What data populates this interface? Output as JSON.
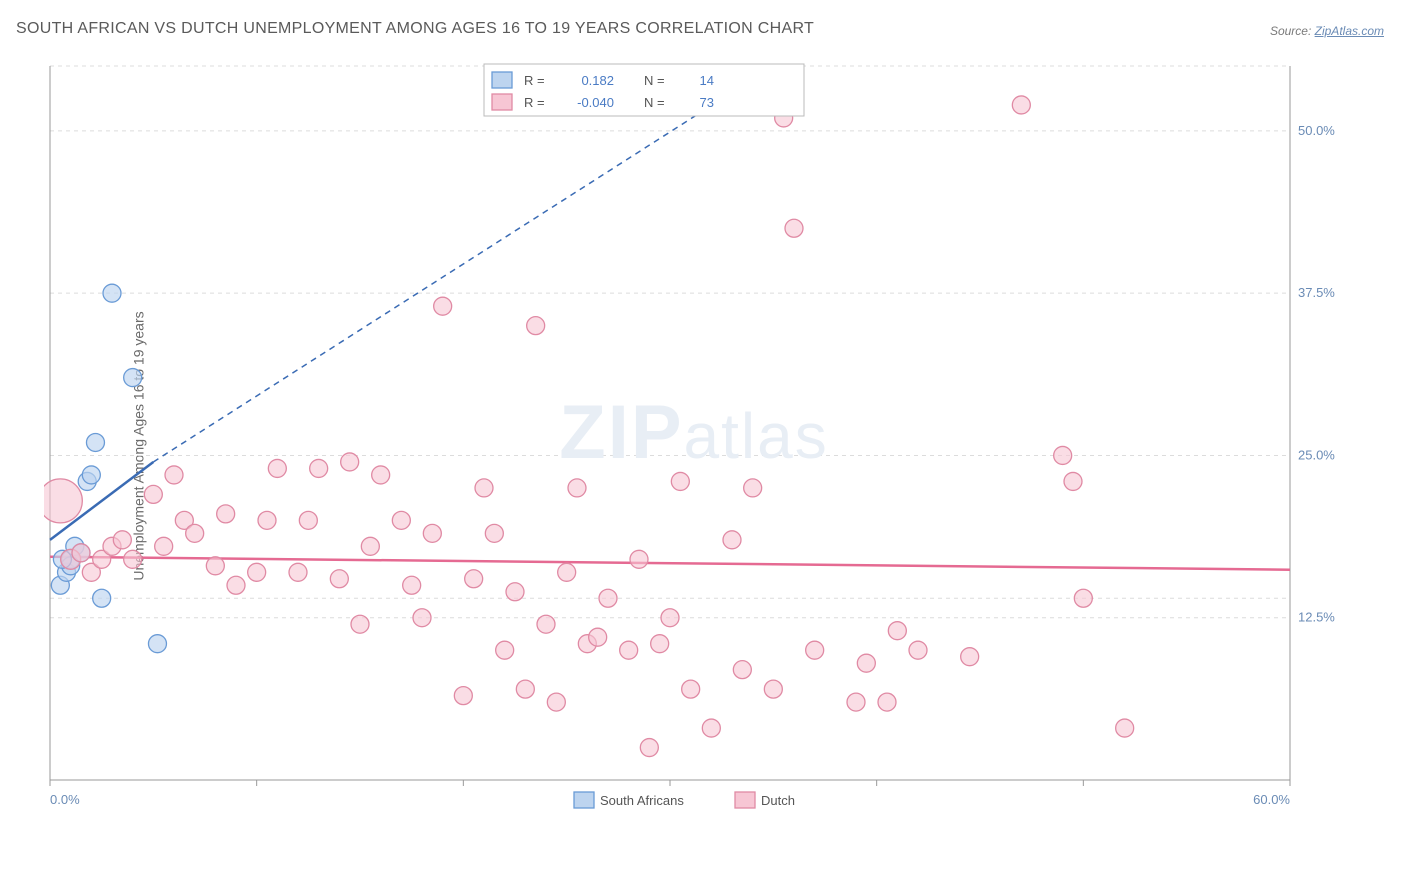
{
  "title": "SOUTH AFRICAN VS DUTCH UNEMPLOYMENT AMONG AGES 16 TO 19 YEARS CORRELATION CHART",
  "source_label": "Source:",
  "source_name": "ZipAtlas.com",
  "ylabel": "Unemployment Among Ages 16 to 19 years",
  "watermark_a": "ZIP",
  "watermark_b": "atlas",
  "chart": {
    "type": "scatter",
    "background_color": "#ffffff",
    "grid_color": "#dcdcdc",
    "grid_dash": "4,4",
    "axis_color": "#999999",
    "xlim": [
      0,
      60
    ],
    "ylim": [
      0,
      55
    ],
    "x_ticks": [
      0,
      10,
      20,
      30,
      40,
      50,
      60
    ],
    "y_ticks": [
      12.5,
      25.0,
      37.5,
      50.0
    ],
    "x_label_min": "0.0%",
    "x_label_max": "60.0%",
    "y_tick_labels": [
      "12.5%",
      "25.0%",
      "37.5%",
      "50.0%"
    ],
    "legend_top": {
      "r_label": "R =",
      "n_label": "N =",
      "value_color": "#4a7bc4",
      "rows": [
        {
          "swatch_fill": "#bdd4ef",
          "swatch_stroke": "#6a9bd6",
          "r": "0.182",
          "n": "14"
        },
        {
          "swatch_fill": "#f7c6d4",
          "swatch_stroke": "#e08aa4",
          "r": "-0.040",
          "n": "73"
        }
      ]
    },
    "legend_bottom": [
      {
        "swatch_fill": "#bdd4ef",
        "swatch_stroke": "#6a9bd6",
        "label": "South Africans"
      },
      {
        "swatch_fill": "#f7c6d4",
        "swatch_stroke": "#e08aa4",
        "label": "Dutch"
      }
    ],
    "series": [
      {
        "name": "South Africans",
        "marker_fill": "#bdd4ef",
        "marker_stroke": "#6a9bd6",
        "marker_opacity": 0.65,
        "line_color": "#3a6bb4",
        "line_width": 2.5,
        "line_solid": {
          "x1": 0,
          "y1": 18.5,
          "x2": 5,
          "y2": 24.5
        },
        "line_dash": {
          "x1": 5,
          "y1": 24.5,
          "x2": 35,
          "y2": 55
        },
        "points": [
          {
            "x": 0.5,
            "y": 15,
            "r": 9
          },
          {
            "x": 0.8,
            "y": 16,
            "r": 9
          },
          {
            "x": 1.0,
            "y": 17,
            "r": 9
          },
          {
            "x": 1.2,
            "y": 18,
            "r": 9
          },
          {
            "x": 1.5,
            "y": 17.5,
            "r": 9
          },
          {
            "x": 1.8,
            "y": 23,
            "r": 9
          },
          {
            "x": 2.0,
            "y": 23.5,
            "r": 9
          },
          {
            "x": 2.2,
            "y": 26,
            "r": 9
          },
          {
            "x": 2.5,
            "y": 14,
            "r": 9
          },
          {
            "x": 3.0,
            "y": 37.5,
            "r": 9
          },
          {
            "x": 4.0,
            "y": 31,
            "r": 9
          },
          {
            "x": 5.2,
            "y": 10.5,
            "r": 9
          },
          {
            "x": 1.0,
            "y": 16.5,
            "r": 9
          },
          {
            "x": 0.6,
            "y": 17,
            "r": 9
          }
        ]
      },
      {
        "name": "Dutch",
        "marker_fill": "#f7c6d4",
        "marker_stroke": "#e08aa4",
        "marker_opacity": 0.6,
        "line_color": "#e56a92",
        "line_width": 2.5,
        "line_solid": {
          "x1": 0,
          "y1": 17.2,
          "x2": 60,
          "y2": 16.2
        },
        "points": [
          {
            "x": 0.5,
            "y": 21.5,
            "r": 22
          },
          {
            "x": 1,
            "y": 17,
            "r": 10
          },
          {
            "x": 1.5,
            "y": 17.5,
            "r": 9
          },
          {
            "x": 2,
            "y": 16,
            "r": 9
          },
          {
            "x": 2.5,
            "y": 17,
            "r": 9
          },
          {
            "x": 3,
            "y": 18,
            "r": 9
          },
          {
            "x": 3.5,
            "y": 18.5,
            "r": 9
          },
          {
            "x": 4,
            "y": 17,
            "r": 9
          },
          {
            "x": 5,
            "y": 22,
            "r": 9
          },
          {
            "x": 5.5,
            "y": 18,
            "r": 9
          },
          {
            "x": 6,
            "y": 23.5,
            "r": 9
          },
          {
            "x": 6.5,
            "y": 20,
            "r": 9
          },
          {
            "x": 7,
            "y": 19,
            "r": 9
          },
          {
            "x": 8,
            "y": 16.5,
            "r": 9
          },
          {
            "x": 8.5,
            "y": 20.5,
            "r": 9
          },
          {
            "x": 9,
            "y": 15,
            "r": 9
          },
          {
            "x": 10,
            "y": 16,
            "r": 9
          },
          {
            "x": 10.5,
            "y": 20,
            "r": 9
          },
          {
            "x": 11,
            "y": 24,
            "r": 9
          },
          {
            "x": 12,
            "y": 16,
            "r": 9
          },
          {
            "x": 12.5,
            "y": 20,
            "r": 9
          },
          {
            "x": 13,
            "y": 24,
            "r": 9
          },
          {
            "x": 14,
            "y": 15.5,
            "r": 9
          },
          {
            "x": 14.5,
            "y": 24.5,
            "r": 9
          },
          {
            "x": 15,
            "y": 12,
            "r": 9
          },
          {
            "x": 15.5,
            "y": 18,
            "r": 9
          },
          {
            "x": 16,
            "y": 23.5,
            "r": 9
          },
          {
            "x": 17,
            "y": 20,
            "r": 9
          },
          {
            "x": 17.5,
            "y": 15,
            "r": 9
          },
          {
            "x": 18,
            "y": 12.5,
            "r": 9
          },
          {
            "x": 18.5,
            "y": 19,
            "r": 9
          },
          {
            "x": 19,
            "y": 36.5,
            "r": 9
          },
          {
            "x": 20,
            "y": 6.5,
            "r": 9
          },
          {
            "x": 20.5,
            "y": 15.5,
            "r": 9
          },
          {
            "x": 21,
            "y": 22.5,
            "r": 9
          },
          {
            "x": 21.5,
            "y": 19,
            "r": 9
          },
          {
            "x": 22,
            "y": 10,
            "r": 9
          },
          {
            "x": 22.5,
            "y": 14.5,
            "r": 9
          },
          {
            "x": 23,
            "y": 7,
            "r": 9
          },
          {
            "x": 23.5,
            "y": 35,
            "r": 9
          },
          {
            "x": 24,
            "y": 12,
            "r": 9
          },
          {
            "x": 24.5,
            "y": 6,
            "r": 9
          },
          {
            "x": 25,
            "y": 16,
            "r": 9
          },
          {
            "x": 25.5,
            "y": 22.5,
            "r": 9
          },
          {
            "x": 26,
            "y": 10.5,
            "r": 9
          },
          {
            "x": 26.5,
            "y": 11,
            "r": 9
          },
          {
            "x": 27,
            "y": 14,
            "r": 9
          },
          {
            "x": 28,
            "y": 10,
            "r": 9
          },
          {
            "x": 28.5,
            "y": 17,
            "r": 9
          },
          {
            "x": 29,
            "y": 2.5,
            "r": 9
          },
          {
            "x": 29.5,
            "y": 10.5,
            "r": 9
          },
          {
            "x": 30,
            "y": 12.5,
            "r": 9
          },
          {
            "x": 30.5,
            "y": 23,
            "r": 9
          },
          {
            "x": 31,
            "y": 7,
            "r": 9
          },
          {
            "x": 32,
            "y": 4,
            "r": 9
          },
          {
            "x": 33,
            "y": 18.5,
            "r": 9
          },
          {
            "x": 33.5,
            "y": 8.5,
            "r": 9
          },
          {
            "x": 34,
            "y": 22.5,
            "r": 9
          },
          {
            "x": 35,
            "y": 7,
            "r": 9
          },
          {
            "x": 35.5,
            "y": 51,
            "r": 9
          },
          {
            "x": 36,
            "y": 42.5,
            "r": 9
          },
          {
            "x": 37,
            "y": 10,
            "r": 9
          },
          {
            "x": 39,
            "y": 6,
            "r": 9
          },
          {
            "x": 39.5,
            "y": 9,
            "r": 9
          },
          {
            "x": 40.5,
            "y": 6,
            "r": 9
          },
          {
            "x": 41,
            "y": 11.5,
            "r": 9
          },
          {
            "x": 42,
            "y": 10,
            "r": 9
          },
          {
            "x": 44.5,
            "y": 9.5,
            "r": 9
          },
          {
            "x": 47,
            "y": 52,
            "r": 9
          },
          {
            "x": 49,
            "y": 25,
            "r": 9
          },
          {
            "x": 49.5,
            "y": 23,
            "r": 9
          },
          {
            "x": 50,
            "y": 14,
            "r": 9
          },
          {
            "x": 52,
            "y": 4,
            "r": 9
          }
        ]
      }
    ]
  }
}
